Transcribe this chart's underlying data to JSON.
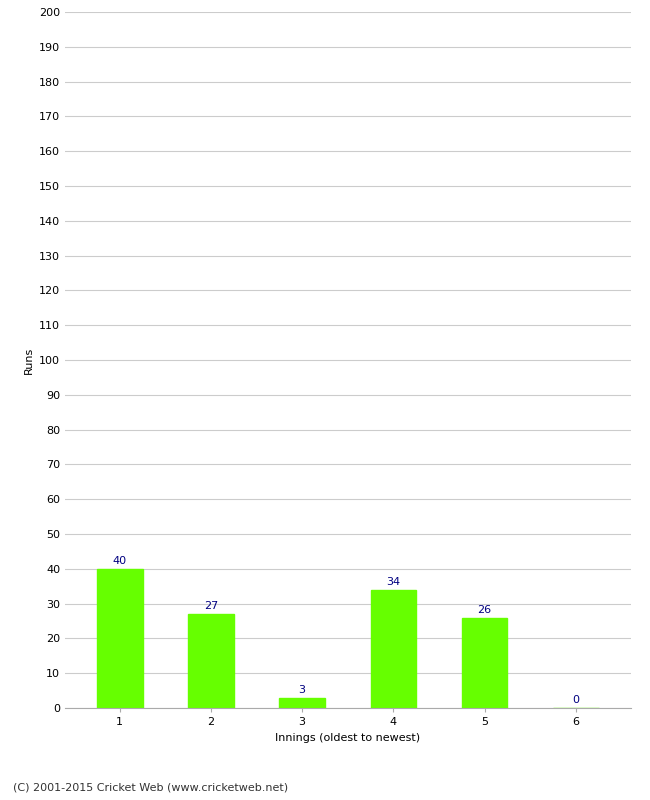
{
  "categories": [
    "1",
    "2",
    "3",
    "4",
    "5",
    "6"
  ],
  "values": [
    40,
    27,
    3,
    34,
    26,
    0
  ],
  "bar_color": "#66ff00",
  "bar_edge_color": "#66ff00",
  "xlabel": "Innings (oldest to newest)",
  "ylabel": "Runs",
  "ylim": [
    0,
    200
  ],
  "yticks": [
    0,
    10,
    20,
    30,
    40,
    50,
    60,
    70,
    80,
    90,
    100,
    110,
    120,
    130,
    140,
    150,
    160,
    170,
    180,
    190,
    200
  ],
  "label_color": "#000080",
  "label_fontsize": 8,
  "axis_fontsize": 8,
  "tick_fontsize": 8,
  "footer_text": "(C) 2001-2015 Cricket Web (www.cricketweb.net)",
  "footer_fontsize": 8,
  "background_color": "#ffffff",
  "grid_color": "#cccccc"
}
